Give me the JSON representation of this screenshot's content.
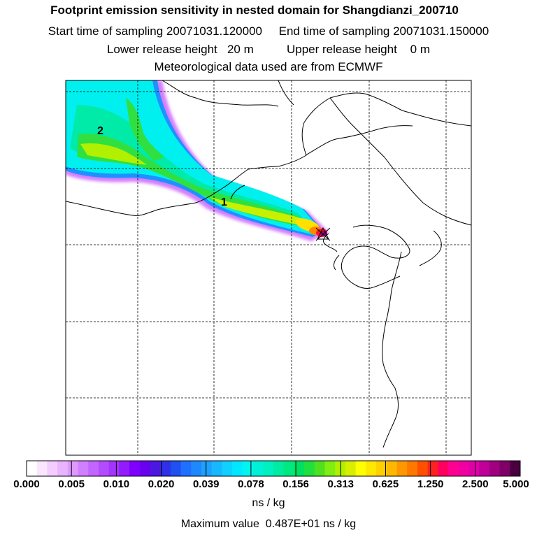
{
  "header": {
    "title": "Footprint emission sensitivity in nested domain for Shangdianzi_200710",
    "sampling_line": "Start time of sampling 20071031.120000     End time of sampling 20071031.150000",
    "release_line": "Lower release height   20 m          Upper release height    0 m",
    "met_line": "Meteorological data used are from ECMWF"
  },
  "map": {
    "labels": [
      {
        "text": "2"
      },
      {
        "text": "1"
      }
    ]
  },
  "colorbar": {
    "ticks": [
      "0.000",
      "0.005",
      "0.010",
      "0.020",
      "0.039",
      "0.078",
      "0.156",
      "0.313",
      "0.625",
      "1.250",
      "2.500",
      "5.000"
    ],
    "colors": [
      "#ffffff",
      "#fbe6ff",
      "#f5ccff",
      "#eab3ff",
      "#de99ff",
      "#d07fff",
      "#c266ff",
      "#b34cff",
      "#a533ff",
      "#941aff",
      "#8000ff",
      "#6a00f0",
      "#4c18e0",
      "#3030e6",
      "#2050f0",
      "#2070ff",
      "#1e88ff",
      "#1ea0ff",
      "#18b8ff",
      "#10d0ff",
      "#00e8ff",
      "#00f5f0",
      "#00f0d8",
      "#00f0c0",
      "#00eca0",
      "#00e880",
      "#00e060",
      "#20e040",
      "#50e020",
      "#80ee10",
      "#b0f000",
      "#d8f000",
      "#ffff00",
      "#ffe800",
      "#ffd000",
      "#ffb800",
      "#ff9800",
      "#ff7800",
      "#ff5000",
      "#ff2020",
      "#ff0060",
      "#ff0090",
      "#f000a0",
      "#e000a8",
      "#c00098",
      "#a00080",
      "#800068",
      "#4a0040"
    ],
    "units": "ns / kg"
  },
  "footer": {
    "max_value": "Maximum value  0.487E+01 ns / kg"
  }
}
